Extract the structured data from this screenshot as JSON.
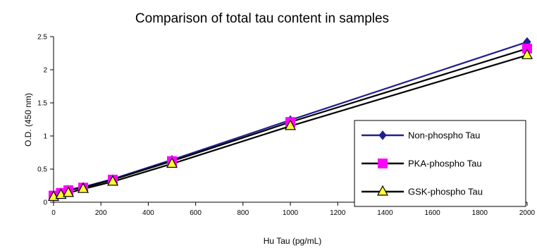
{
  "chart_data": {
    "type": "line",
    "title": "Comparison of total tau content in samples",
    "xlabel": "Hu Tau (pg/mL)",
    "ylabel": "O.D. (450 nm)",
    "xlim": [
      0,
      2000
    ],
    "ylim": [
      0,
      2.5
    ],
    "xticks": [
      "0",
      "200",
      "400",
      "600",
      "800",
      "1000",
      "1200",
      "1400",
      "1600",
      "1800",
      "2000"
    ],
    "yticks": [
      "0",
      "0.5",
      "1",
      "1.5",
      "2",
      "2.5"
    ],
    "x": [
      0,
      31.25,
      62.5,
      125,
      250,
      500,
      1000,
      2000
    ],
    "legend_position": "right",
    "series": [
      {
        "name": "Non-phospho Tau",
        "marker": "diamond",
        "color": "#1f1f8f",
        "values": [
          0.1,
          0.15,
          0.19,
          0.23,
          0.35,
          0.64,
          1.24,
          2.42
        ]
      },
      {
        "name": "PKA-phospho Tau",
        "marker": "square",
        "color": "#000000",
        "marker_color": "#ff00ff",
        "values": [
          0.1,
          0.14,
          0.18,
          0.22,
          0.34,
          0.62,
          1.21,
          2.32
        ]
      },
      {
        "name": "GSK-phospho Tau",
        "marker": "triangle",
        "color": "#000000",
        "marker_color": "#ffff33",
        "values": [
          0.08,
          0.11,
          0.14,
          0.2,
          0.31,
          0.58,
          1.15,
          2.22
        ]
      }
    ]
  }
}
